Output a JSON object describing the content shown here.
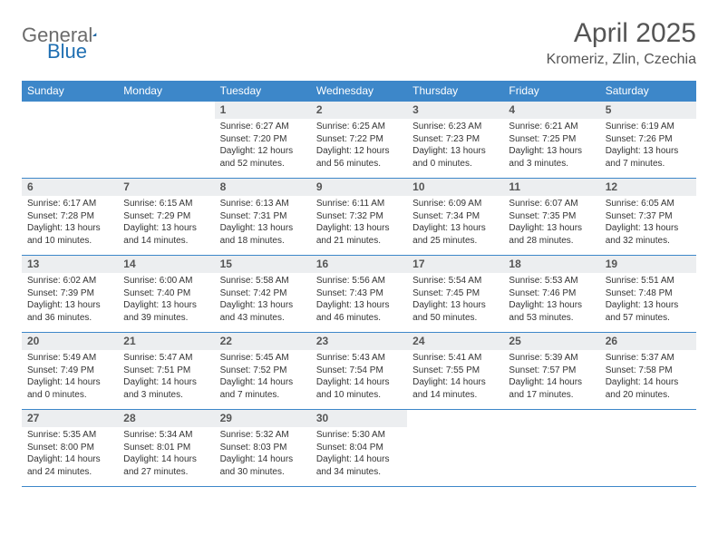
{
  "brand": {
    "general": "General",
    "blue": "Blue"
  },
  "title": "April 2025",
  "location": "Kromeriz, Zlin, Czechia",
  "colors": {
    "header_bar": "#3d87c9",
    "header_text": "#ffffff",
    "date_bar_bg": "#eceef0",
    "text": "#333333",
    "rule": "#3d87c9"
  },
  "dow": [
    "Sunday",
    "Monday",
    "Tuesday",
    "Wednesday",
    "Thursday",
    "Friday",
    "Saturday"
  ],
  "weeks": [
    [
      {
        "empty": true
      },
      {
        "empty": true
      },
      {
        "date": "1",
        "sunrise": "6:27 AM",
        "sunset": "7:20 PM",
        "daylight": "12 hours and 52 minutes."
      },
      {
        "date": "2",
        "sunrise": "6:25 AM",
        "sunset": "7:22 PM",
        "daylight": "12 hours and 56 minutes."
      },
      {
        "date": "3",
        "sunrise": "6:23 AM",
        "sunset": "7:23 PM",
        "daylight": "13 hours and 0 minutes."
      },
      {
        "date": "4",
        "sunrise": "6:21 AM",
        "sunset": "7:25 PM",
        "daylight": "13 hours and 3 minutes."
      },
      {
        "date": "5",
        "sunrise": "6:19 AM",
        "sunset": "7:26 PM",
        "daylight": "13 hours and 7 minutes."
      }
    ],
    [
      {
        "date": "6",
        "sunrise": "6:17 AM",
        "sunset": "7:28 PM",
        "daylight": "13 hours and 10 minutes."
      },
      {
        "date": "7",
        "sunrise": "6:15 AM",
        "sunset": "7:29 PM",
        "daylight": "13 hours and 14 minutes."
      },
      {
        "date": "8",
        "sunrise": "6:13 AM",
        "sunset": "7:31 PM",
        "daylight": "13 hours and 18 minutes."
      },
      {
        "date": "9",
        "sunrise": "6:11 AM",
        "sunset": "7:32 PM",
        "daylight": "13 hours and 21 minutes."
      },
      {
        "date": "10",
        "sunrise": "6:09 AM",
        "sunset": "7:34 PM",
        "daylight": "13 hours and 25 minutes."
      },
      {
        "date": "11",
        "sunrise": "6:07 AM",
        "sunset": "7:35 PM",
        "daylight": "13 hours and 28 minutes."
      },
      {
        "date": "12",
        "sunrise": "6:05 AM",
        "sunset": "7:37 PM",
        "daylight": "13 hours and 32 minutes."
      }
    ],
    [
      {
        "date": "13",
        "sunrise": "6:02 AM",
        "sunset": "7:39 PM",
        "daylight": "13 hours and 36 minutes."
      },
      {
        "date": "14",
        "sunrise": "6:00 AM",
        "sunset": "7:40 PM",
        "daylight": "13 hours and 39 minutes."
      },
      {
        "date": "15",
        "sunrise": "5:58 AM",
        "sunset": "7:42 PM",
        "daylight": "13 hours and 43 minutes."
      },
      {
        "date": "16",
        "sunrise": "5:56 AM",
        "sunset": "7:43 PM",
        "daylight": "13 hours and 46 minutes."
      },
      {
        "date": "17",
        "sunrise": "5:54 AM",
        "sunset": "7:45 PM",
        "daylight": "13 hours and 50 minutes."
      },
      {
        "date": "18",
        "sunrise": "5:53 AM",
        "sunset": "7:46 PM",
        "daylight": "13 hours and 53 minutes."
      },
      {
        "date": "19",
        "sunrise": "5:51 AM",
        "sunset": "7:48 PM",
        "daylight": "13 hours and 57 minutes."
      }
    ],
    [
      {
        "date": "20",
        "sunrise": "5:49 AM",
        "sunset": "7:49 PM",
        "daylight": "14 hours and 0 minutes."
      },
      {
        "date": "21",
        "sunrise": "5:47 AM",
        "sunset": "7:51 PM",
        "daylight": "14 hours and 3 minutes."
      },
      {
        "date": "22",
        "sunrise": "5:45 AM",
        "sunset": "7:52 PM",
        "daylight": "14 hours and 7 minutes."
      },
      {
        "date": "23",
        "sunrise": "5:43 AM",
        "sunset": "7:54 PM",
        "daylight": "14 hours and 10 minutes."
      },
      {
        "date": "24",
        "sunrise": "5:41 AM",
        "sunset": "7:55 PM",
        "daylight": "14 hours and 14 minutes."
      },
      {
        "date": "25",
        "sunrise": "5:39 AM",
        "sunset": "7:57 PM",
        "daylight": "14 hours and 17 minutes."
      },
      {
        "date": "26",
        "sunrise": "5:37 AM",
        "sunset": "7:58 PM",
        "daylight": "14 hours and 20 minutes."
      }
    ],
    [
      {
        "date": "27",
        "sunrise": "5:35 AM",
        "sunset": "8:00 PM",
        "daylight": "14 hours and 24 minutes."
      },
      {
        "date": "28",
        "sunrise": "5:34 AM",
        "sunset": "8:01 PM",
        "daylight": "14 hours and 27 minutes."
      },
      {
        "date": "29",
        "sunrise": "5:32 AM",
        "sunset": "8:03 PM",
        "daylight": "14 hours and 30 minutes."
      },
      {
        "date": "30",
        "sunrise": "5:30 AM",
        "sunset": "8:04 PM",
        "daylight": "14 hours and 34 minutes."
      },
      {
        "empty": true
      },
      {
        "empty": true
      },
      {
        "empty": true
      }
    ]
  ],
  "labels": {
    "sunrise": "Sunrise:",
    "sunset": "Sunset:",
    "daylight": "Daylight:"
  }
}
